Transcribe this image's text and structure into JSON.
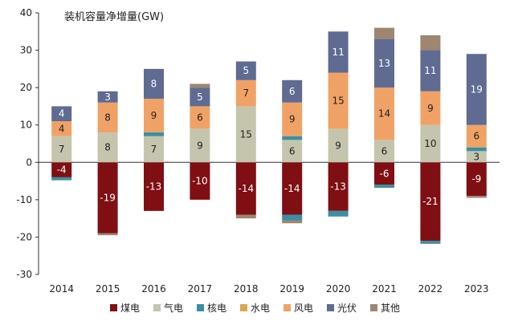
{
  "chart_data": {
    "type": "bar",
    "stacked": true,
    "title": "装机容量净增量(GW)",
    "xlabel": "",
    "ylabel": "",
    "ylim": [
      -30,
      40
    ],
    "yticks": [
      -30,
      -20,
      -10,
      0,
      10,
      20,
      30,
      40
    ],
    "grid": false,
    "legend_position": "bottom",
    "categories": [
      "2014",
      "2015",
      "2016",
      "2017",
      "2018",
      "2019",
      "2020",
      "2021",
      "2022",
      "2023"
    ],
    "series": [
      {
        "name": "煤电",
        "color": "#7f0f13",
        "values": [
          -4,
          -19,
          -13,
          -10,
          -14,
          -14,
          -13,
          -6,
          -21,
          -9
        ],
        "labels": [
          "-4",
          "-19",
          "-13",
          "-10",
          "-14",
          "-14",
          "-13",
          "-6",
          "-21",
          "-9"
        ]
      },
      {
        "name": "气电",
        "color": "#c5c5ae",
        "values": [
          7,
          8,
          7,
          9,
          15,
          6,
          9,
          6,
          10,
          3
        ],
        "labels": [
          "7",
          "8",
          "7",
          "9",
          "15",
          "6",
          "9",
          "6",
          "10",
          "3"
        ]
      },
      {
        "name": "核电",
        "color": "#3a8fa3",
        "values": [
          0,
          0,
          1,
          0,
          0,
          1,
          0,
          0,
          0,
          1
        ],
        "labels": [
          "",
          "",
          "",
          "",
          "",
          "",
          "",
          "",
          "",
          ""
        ]
      },
      {
        "name": "水电",
        "color": "#d9a84e",
        "values": [
          0,
          0,
          0,
          0,
          0,
          0,
          0,
          0,
          0,
          0
        ],
        "labels": [
          "",
          "",
          "",
          "",
          "",
          "",
          "",
          "",
          "",
          ""
        ]
      },
      {
        "name": "风电",
        "color": "#f0a266",
        "values": [
          4,
          8,
          9,
          6,
          7,
          9,
          15,
          14,
          9,
          6
        ],
        "labels": [
          "4",
          "8",
          "9",
          "6",
          "7",
          "9",
          "15",
          "14",
          "9",
          "6"
        ]
      },
      {
        "name": "光伏",
        "color": "#5f6b91",
        "values": [
          4,
          3,
          8,
          5,
          5,
          6,
          11,
          13,
          11,
          19
        ],
        "labels": [
          "4",
          "3",
          "8",
          "5",
          "5",
          "6",
          "11",
          "13",
          "11",
          "19"
        ]
      },
      {
        "name": "其他",
        "color": "#9e8670",
        "values": [
          0,
          0,
          0,
          1,
          0,
          0,
          0,
          3,
          4,
          0
        ],
        "labels": [
          "",
          "",
          "",
          "",
          "",
          "",
          "",
          "",
          "",
          ""
        ]
      }
    ],
    "negative_offsets": {
      "核电": [
        -0.8,
        0,
        0,
        0,
        0,
        -1.5,
        -1.5,
        -0.8,
        -0.8,
        0
      ],
      "其他": [
        0,
        -0.5,
        0,
        0,
        -1,
        -0.8,
        0,
        0,
        0,
        -0.5
      ]
    }
  }
}
